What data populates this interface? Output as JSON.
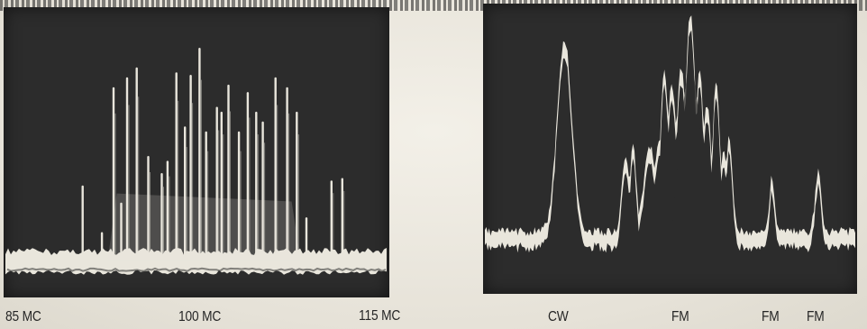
{
  "left_panel": {
    "axis_labels": [
      "85 MC",
      "100 MC",
      "115 MC"
    ],
    "baseline_level": 0.085,
    "noise_band": 0.06,
    "peaks": [
      {
        "f": 0.205,
        "h": 0.3
      },
      {
        "f": 0.255,
        "h": 0.11
      },
      {
        "f": 0.285,
        "h": 0.7
      },
      {
        "f": 0.305,
        "h": 0.23
      },
      {
        "f": 0.32,
        "h": 0.74
      },
      {
        "f": 0.345,
        "h": 0.78
      },
      {
        "f": 0.375,
        "h": 0.42
      },
      {
        "f": 0.41,
        "h": 0.35
      },
      {
        "f": 0.425,
        "h": 0.4
      },
      {
        "f": 0.448,
        "h": 0.76
      },
      {
        "f": 0.47,
        "h": 0.54
      },
      {
        "f": 0.485,
        "h": 0.75
      },
      {
        "f": 0.508,
        "h": 0.86
      },
      {
        "f": 0.525,
        "h": 0.52
      },
      {
        "f": 0.553,
        "h": 0.62
      },
      {
        "f": 0.565,
        "h": 0.6
      },
      {
        "f": 0.583,
        "h": 0.71
      },
      {
        "f": 0.61,
        "h": 0.52
      },
      {
        "f": 0.633,
        "h": 0.68
      },
      {
        "f": 0.655,
        "h": 0.6
      },
      {
        "f": 0.672,
        "h": 0.56
      },
      {
        "f": 0.705,
        "h": 0.74
      },
      {
        "f": 0.735,
        "h": 0.7
      },
      {
        "f": 0.76,
        "h": 0.6
      },
      {
        "f": 0.785,
        "h": 0.17
      },
      {
        "f": 0.85,
        "h": 0.32
      },
      {
        "f": 0.878,
        "h": 0.33
      }
    ]
  },
  "right_panel": {
    "axis_labels": [
      "CW",
      "FM",
      "FM",
      "FM"
    ],
    "baseline_level": 0.19,
    "noise_band": 0.06,
    "signal": [
      {
        "f": 0.215,
        "h": 0.72,
        "w": 0.028
      },
      {
        "f": 0.38,
        "h": 0.28,
        "w": 0.014
      },
      {
        "f": 0.4,
        "h": 0.33,
        "w": 0.012
      },
      {
        "f": 0.445,
        "h": 0.32,
        "w": 0.022
      },
      {
        "f": 0.47,
        "h": 0.35,
        "w": 0.018
      },
      {
        "f": 0.485,
        "h": 0.6,
        "w": 0.016
      },
      {
        "f": 0.505,
        "h": 0.55,
        "w": 0.018
      },
      {
        "f": 0.53,
        "h": 0.62,
        "w": 0.018
      },
      {
        "f": 0.555,
        "h": 0.82,
        "w": 0.02
      },
      {
        "f": 0.58,
        "h": 0.6,
        "w": 0.016
      },
      {
        "f": 0.6,
        "h": 0.48,
        "w": 0.016
      },
      {
        "f": 0.625,
        "h": 0.57,
        "w": 0.014
      },
      {
        "f": 0.655,
        "h": 0.18,
        "w": 0.014
      },
      {
        "f": 0.645,
        "h": 0.3,
        "w": 0.012
      },
      {
        "f": 0.66,
        "h": 0.36,
        "w": 0.012
      },
      {
        "f": 0.775,
        "h": 0.2,
        "w": 0.01
      },
      {
        "f": 0.9,
        "h": 0.22,
        "w": 0.012
      }
    ]
  }
}
